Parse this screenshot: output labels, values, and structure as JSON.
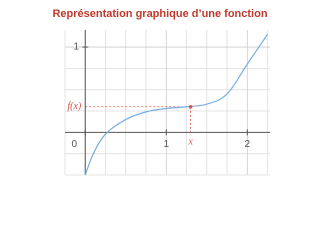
{
  "chart_data": {
    "type": "line",
    "title": "Représentation graphique d’une fonction",
    "x": [
      0,
      0.1,
      0.25,
      0.5,
      0.75,
      1,
      1.25,
      1.5,
      1.75,
      2,
      2.25
    ],
    "values": [
      -0.5,
      -0.25,
      -0.02,
      0.15,
      0.24,
      0.28,
      0.3,
      0.33,
      0.45,
      0.8,
      1.15
    ],
    "color": "#7aaee0",
    "xlim": [
      -0.25,
      2.28
    ],
    "ylim": [
      -0.5,
      1.2
    ],
    "xticks": [
      0,
      1,
      2
    ],
    "yticks": [
      1
    ],
    "minor_xticks": [
      -0.25,
      0.25,
      0.5,
      0.75,
      1.25,
      1.5,
      1.75,
      2.25
    ],
    "minor_yticks": [
      -0.5,
      -0.25,
      0.25,
      0.5,
      0.75
    ],
    "grid": true,
    "point": {
      "x": 1.3,
      "y": 0.3,
      "color": "#d9534f",
      "x_label": "x",
      "y_label": "f(x)"
    }
  }
}
